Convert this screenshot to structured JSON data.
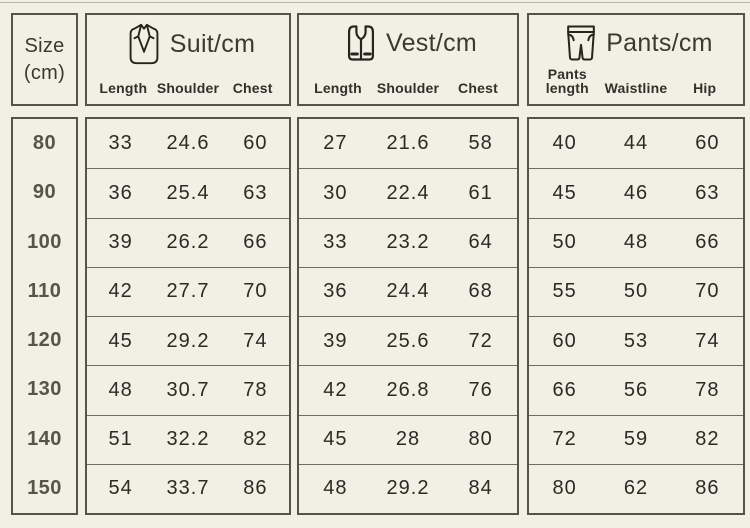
{
  "table": {
    "size_header": {
      "line1": "Size",
      "line2": "(cm)"
    },
    "groups": [
      {
        "title": "Suit/cm",
        "icon": "suit-icon",
        "columns": [
          "Length",
          "Shoulder",
          "Chest"
        ]
      },
      {
        "title": "Vest/cm",
        "icon": "vest-icon",
        "columns": [
          "Length",
          "Shoulder",
          "Chest"
        ]
      },
      {
        "title": "Pants/cm",
        "icon": "pants-icon",
        "columns": [
          "Pants\nlength",
          "Waistline",
          "Hip"
        ]
      }
    ],
    "rows": [
      {
        "size": "80",
        "suit": [
          "33",
          "24.6",
          "60"
        ],
        "vest": [
          "27",
          "21.6",
          "58"
        ],
        "pants": [
          "40",
          "44",
          "60"
        ]
      },
      {
        "size": "90",
        "suit": [
          "36",
          "25.4",
          "63"
        ],
        "vest": [
          "30",
          "22.4",
          "61"
        ],
        "pants": [
          "45",
          "46",
          "63"
        ]
      },
      {
        "size": "100",
        "suit": [
          "39",
          "26.2",
          "66"
        ],
        "vest": [
          "33",
          "23.2",
          "64"
        ],
        "pants": [
          "50",
          "48",
          "66"
        ]
      },
      {
        "size": "110",
        "suit": [
          "42",
          "27.7",
          "70"
        ],
        "vest": [
          "36",
          "24.4",
          "68"
        ],
        "pants": [
          "55",
          "50",
          "70"
        ]
      },
      {
        "size": "120",
        "suit": [
          "45",
          "29.2",
          "74"
        ],
        "vest": [
          "39",
          "25.6",
          "72"
        ],
        "pants": [
          "60",
          "53",
          "74"
        ]
      },
      {
        "size": "130",
        "suit": [
          "48",
          "30.7",
          "78"
        ],
        "vest": [
          "42",
          "26.8",
          "76"
        ],
        "pants": [
          "66",
          "56",
          "78"
        ]
      },
      {
        "size": "140",
        "suit": [
          "51",
          "32.2",
          "82"
        ],
        "vest": [
          "45",
          "28",
          "80"
        ],
        "pants": [
          "72",
          "59",
          "82"
        ]
      },
      {
        "size": "150",
        "suit": [
          "54",
          "33.7",
          "86"
        ],
        "vest": [
          "48",
          "29.2",
          "84"
        ],
        "pants": [
          "80",
          "62",
          "86"
        ]
      }
    ]
  },
  "colors": {
    "background": "#f2efe4",
    "box_border": "#55534b",
    "row_divider": "#6f6c60",
    "data_text": "#2b2a24",
    "size_text": "#57544a",
    "icon_stroke": "#26241d"
  }
}
